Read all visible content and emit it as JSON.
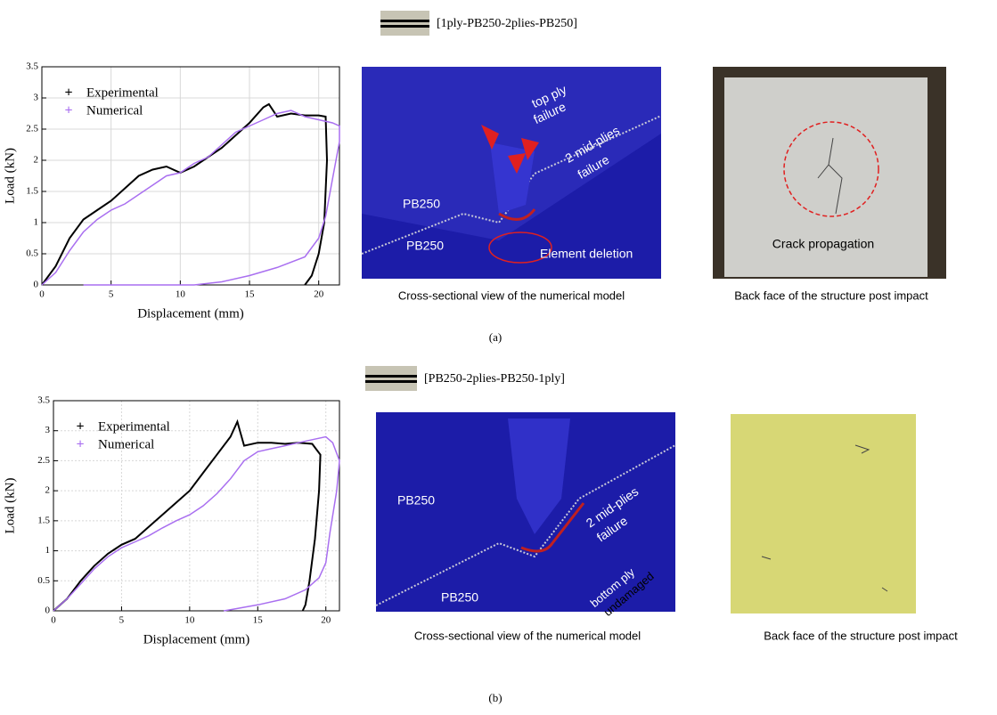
{
  "chart_data": [
    {
      "type": "line",
      "x_label": "Displacement (mm)",
      "y_label": "Load (kN)",
      "xlim": [
        0,
        21.5
      ],
      "xticks": [
        0,
        5,
        10,
        15,
        20
      ],
      "ylim": [
        0,
        3.5
      ],
      "yticks": [
        0,
        0.5,
        1,
        1.5,
        2,
        2.5,
        3,
        3.5
      ],
      "grid": true,
      "legend": "upper left",
      "series": [
        {
          "name": "Experimental",
          "color": "#000000",
          "x": [
            0,
            1,
            2,
            3,
            4,
            5,
            6,
            7,
            8,
            9,
            10,
            11,
            12,
            13,
            14,
            15,
            16,
            16.4,
            17,
            18,
            19,
            20,
            20.5,
            20.6,
            20.4,
            20,
            19.5,
            19
          ],
          "values": [
            0,
            0.3,
            0.75,
            1.05,
            1.2,
            1.35,
            1.55,
            1.75,
            1.85,
            1.9,
            1.8,
            1.9,
            2.05,
            2.2,
            2.4,
            2.6,
            2.85,
            2.9,
            2.7,
            2.75,
            2.72,
            2.72,
            2.7,
            2.0,
            1.0,
            0.5,
            0.15,
            0
          ]
        },
        {
          "name": "Numerical",
          "color": "#a96ff0",
          "x": [
            0,
            1,
            2,
            3,
            4,
            5,
            6,
            7,
            8,
            9,
            10,
            11,
            12,
            13,
            14,
            15,
            16,
            17,
            18,
            19,
            20,
            21,
            21.5,
            21.5,
            21,
            20.5,
            20,
            19,
            17,
            15,
            13,
            11,
            9,
            3
          ],
          "values": [
            0,
            0.2,
            0.55,
            0.85,
            1.05,
            1.2,
            1.3,
            1.45,
            1.6,
            1.75,
            1.8,
            1.95,
            2.05,
            2.25,
            2.45,
            2.55,
            2.65,
            2.75,
            2.8,
            2.7,
            2.65,
            2.6,
            2.55,
            2.3,
            1.7,
            1.1,
            0.75,
            0.45,
            0.28,
            0.15,
            0.05,
            0,
            0,
            0
          ]
        }
      ]
    },
    {
      "type": "line",
      "x_label": "Displacement (mm)",
      "y_label": "Load (kN)",
      "xlim": [
        0,
        21
      ],
      "xticks": [
        0,
        5,
        10,
        15,
        20
      ],
      "ylim": [
        0,
        3.5
      ],
      "yticks": [
        0,
        0.5,
        1,
        1.5,
        2,
        2.5,
        3,
        3.5
      ],
      "grid": true,
      "legend": "upper left",
      "series": [
        {
          "name": "Experimental",
          "color": "#000000",
          "x": [
            0,
            1,
            2,
            3,
            4,
            5,
            6,
            7,
            8,
            9,
            10,
            11,
            12,
            13,
            13.5,
            14,
            15,
            16,
            17,
            18,
            19,
            19.6,
            19.5,
            19.2,
            18.8,
            18.5,
            18.3
          ],
          "values": [
            0,
            0.2,
            0.5,
            0.75,
            0.95,
            1.1,
            1.2,
            1.4,
            1.6,
            1.8,
            2.0,
            2.3,
            2.6,
            2.9,
            3.15,
            2.75,
            2.8,
            2.8,
            2.78,
            2.8,
            2.78,
            2.6,
            2.0,
            1.2,
            0.5,
            0.1,
            0
          ]
        },
        {
          "name": "Numerical",
          "color": "#a96ff0",
          "x": [
            0,
            1,
            2,
            3,
            4,
            5,
            6,
            7,
            8,
            9,
            10,
            11,
            12,
            13,
            14,
            15,
            16,
            17,
            18,
            19,
            20,
            20.5,
            21,
            20.8,
            20.3,
            20,
            19.5,
            18.5,
            17,
            15,
            13,
            12.5
          ],
          "values": [
            0,
            0.2,
            0.45,
            0.7,
            0.9,
            1.05,
            1.15,
            1.25,
            1.38,
            1.5,
            1.6,
            1.75,
            1.95,
            2.2,
            2.5,
            2.65,
            2.7,
            2.75,
            2.8,
            2.85,
            2.9,
            2.8,
            2.5,
            2.0,
            1.3,
            0.8,
            0.55,
            0.35,
            0.2,
            0.1,
            0.02,
            0
          ]
        }
      ]
    }
  ],
  "panels": [
    {
      "layup": "[1ply-PB250-2plies-PB250]",
      "label": "(a)",
      "model_caption": "Cross-sectional view of the numerical model",
      "model_labels": [
        "top ply",
        "failure",
        "2 mid-plies",
        "failure",
        "PB250",
        "PB250",
        "Element deletion"
      ],
      "photo_caption": "Back face of the structure post impact",
      "photo_label": "Crack propagation"
    },
    {
      "layup": "[PB250-2plies-PB250-1ply]",
      "label": "(b)",
      "model_caption": "Cross-sectional view of the numerical model",
      "model_labels": [
        "PB250",
        "2 mid-plies",
        "failure",
        "bottom ply",
        "undamaged",
        "PB250"
      ],
      "photo_caption": "Back face of the structure post impact"
    }
  ]
}
